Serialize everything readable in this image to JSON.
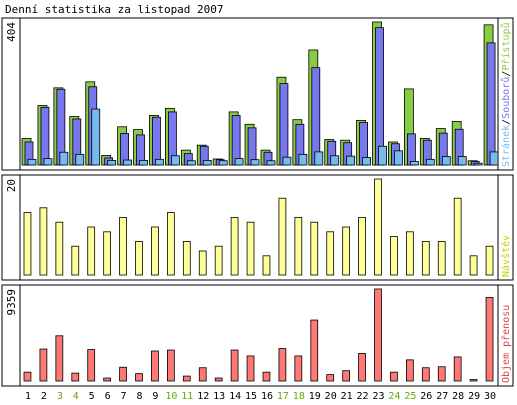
{
  "title": "Denní statistika za listopad 2007",
  "colors": {
    "hits": "#88cc44",
    "files": "#7777ee",
    "pages": "#77bbee",
    "visits": "#ffff99",
    "volume": "#ff7777",
    "weekday_text": "#000000",
    "weekend_text": "#66aa00"
  },
  "chart_data": [
    {
      "type": "bar",
      "panel": "top",
      "ymax_label": "404",
      "ylim": [
        0,
        404
      ],
      "legend": [
        "Stránek",
        "/",
        "Souborů",
        "/",
        "Přístupů"
      ],
      "categories": [
        "1",
        "2",
        "3",
        "4",
        "5",
        "6",
        "7",
        "8",
        "9",
        "10",
        "11",
        "12",
        "13",
        "14",
        "15",
        "16",
        "17",
        "18",
        "19",
        "20",
        "21",
        "22",
        "23",
        "24",
        "25",
        "26",
        "27",
        "28",
        "29",
        "30"
      ],
      "series": [
        {
          "name": "Přístupů",
          "values": [
            75,
            168,
            218,
            137,
            235,
            27,
            108,
            100,
            140,
            160,
            42,
            56,
            17,
            150,
            115,
            42,
            248,
            128,
            325,
            72,
            70,
            126,
            404,
            65,
            215,
            75,
            103,
            123,
            12,
            396
          ]
        },
        {
          "name": "Souborů",
          "values": [
            65,
            163,
            214,
            130,
            221,
            20,
            89,
            85,
            135,
            150,
            32,
            53,
            15,
            140,
            105,
            36,
            230,
            115,
            275,
            67,
            63,
            120,
            388,
            60,
            88,
            70,
            90,
            101,
            10,
            345
          ]
        },
        {
          "name": "Stránek",
          "values": [
            16,
            18,
            36,
            30,
            158,
            13,
            14,
            13,
            16,
            26,
            12,
            13,
            12,
            18,
            15,
            12,
            22,
            30,
            37,
            26,
            25,
            21,
            53,
            40,
            10,
            16,
            24,
            24,
            5,
            37
          ]
        }
      ]
    },
    {
      "type": "bar",
      "panel": "middle",
      "ymax_label": "20",
      "ylim": [
        0,
        20
      ],
      "legend": [
        "Návštěv"
      ],
      "categories": [
        "1",
        "2",
        "3",
        "4",
        "5",
        "6",
        "7",
        "8",
        "9",
        "10",
        "11",
        "12",
        "13",
        "14",
        "15",
        "16",
        "17",
        "18",
        "19",
        "20",
        "21",
        "22",
        "23",
        "24",
        "25",
        "26",
        "27",
        "28",
        "29",
        "30"
      ],
      "series": [
        {
          "name": "Návštěv",
          "values": [
            13,
            14,
            11,
            6,
            10,
            9,
            12,
            7,
            10,
            13,
            7,
            5,
            6,
            12,
            11,
            4,
            16,
            12,
            11,
            9,
            10,
            12,
            20,
            8,
            9,
            7,
            7,
            16,
            4,
            6
          ]
        }
      ]
    },
    {
      "type": "bar",
      "panel": "bottom",
      "ymax_label": "9359",
      "ylim": [
        0,
        9359
      ],
      "legend": [
        "Objem přenosu"
      ],
      "categories": [
        "1",
        "2",
        "3",
        "4",
        "5",
        "6",
        "7",
        "8",
        "9",
        "10",
        "11",
        "12",
        "13",
        "14",
        "15",
        "16",
        "17",
        "18",
        "19",
        "20",
        "21",
        "22",
        "23",
        "24",
        "25",
        "26",
        "27",
        "28",
        "29",
        "30"
      ],
      "series": [
        {
          "name": "Objem přenosu",
          "values": [
            900,
            3250,
            4600,
            800,
            3200,
            300,
            1400,
            750,
            3050,
            3150,
            500,
            1350,
            300,
            3150,
            2550,
            900,
            3300,
            2550,
            6200,
            650,
            1050,
            2800,
            9359,
            900,
            2150,
            1350,
            1450,
            2450,
            150,
            8500
          ]
        }
      ]
    }
  ],
  "weekend_days": [
    "3",
    "4",
    "10",
    "11",
    "17",
    "18",
    "24",
    "25"
  ]
}
